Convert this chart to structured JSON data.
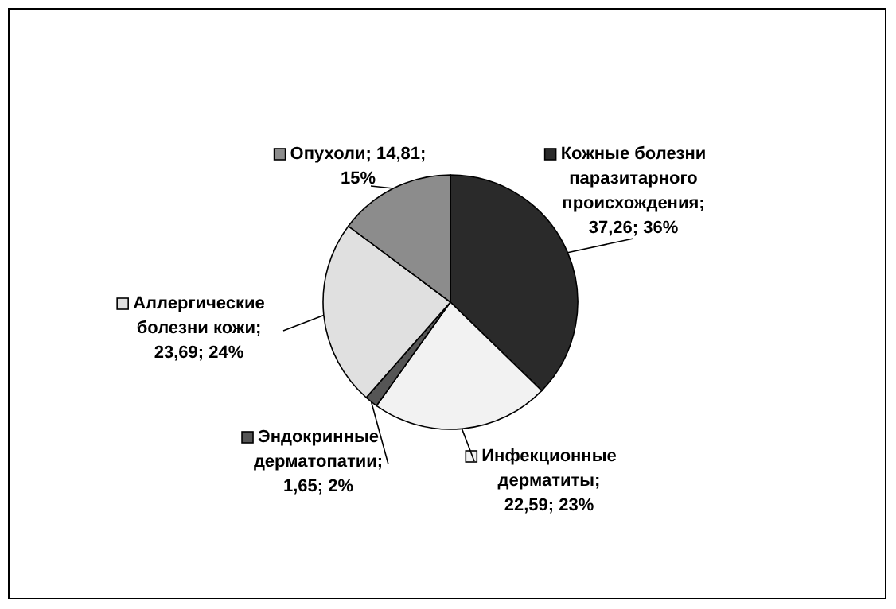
{
  "chart_data": {
    "type": "pie",
    "categories": [
      "Кожные болезни паразитарного происхождения",
      "Инфекционные дерматиты",
      "Эндокринные дерматопатии",
      "Аллергические болезни кожи",
      "Опухоли"
    ],
    "values": [
      37.26,
      22.59,
      1.65,
      23.69,
      14.81
    ],
    "value_labels": [
      "; 37,26; 36%",
      "; 22,59; 23%",
      "; 1,65; 2%",
      "; 23,69; 24%",
      ";  14,81;  15%"
    ],
    "legend": "left",
    "colors": [
      "#2a2a2a",
      "#f2f2f2",
      "#555555",
      "#e0e0e0",
      "#8c8c8c"
    ]
  }
}
